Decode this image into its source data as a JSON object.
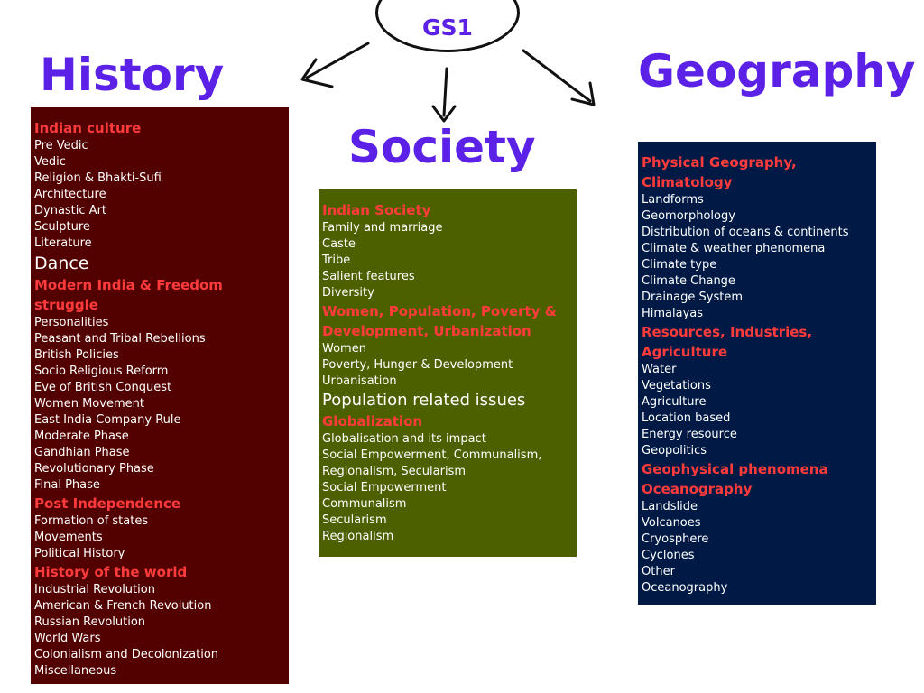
{
  "hub": {
    "label": "GS1"
  },
  "history": {
    "title": "History",
    "groups": [
      {
        "heading": "Indian culture",
        "items": [
          "Pre Vedic",
          "Vedic",
          "Religion & Bhakti-Sufi",
          "Architecture",
          "Dynastic Art",
          "Sculpture",
          "Literature"
        ]
      },
      {
        "heading": "",
        "items": [
          "Dance"
        ]
      },
      {
        "heading": "Modern India & Freedom struggle",
        "items": [
          "Personalities",
          "Peasant and Tribal Rebellions",
          "British Policies",
          "Socio Religious Reform",
          "Eve of British Conquest",
          "Women Movement",
          "East India Company Rule",
          "Moderate Phase",
          "Gandhian Phase",
          "Revolutionary Phase",
          "Final Phase"
        ]
      },
      {
        "heading": "Post Independence",
        "items": [
          "Formation of states",
          "Movements",
          "Political History"
        ]
      },
      {
        "heading": "History of the world",
        "items": [
          "Industrial Revolution",
          "American & French Revolution",
          "Russian Revolution",
          "World Wars",
          "Colonialism and Decolonization",
          "Miscellaneous"
        ]
      }
    ]
  },
  "society": {
    "title": "Society",
    "groups": [
      {
        "heading": "Indian Society",
        "items": [
          "Family and marriage",
          "Caste",
          "Tribe",
          "Salient features",
          "Diversity"
        ]
      },
      {
        "heading": "Women, Population, Poverty & Development, Urbanization",
        "items": [
          "Women",
          "Poverty, Hunger & Development",
          "Urbanisation"
        ]
      },
      {
        "heading": "",
        "items": [
          "Population related issues"
        ]
      },
      {
        "heading": "Globalization",
        "items": [
          "Globalisation and its impact",
          "Social Empowerment, Communalism,",
          "Regionalism, Secularism",
          "Social Empowerment",
          "Communalism",
          "Secularism",
          "Regionalism"
        ]
      }
    ]
  },
  "geography": {
    "title": "Geography",
    "groups": [
      {
        "heading": "Physical Geography, Climatology",
        "items": [
          "Landforms",
          "Geomorphology",
          "Distribution of oceans & continents",
          "Climate & weather phenomena",
          "Climate type",
          "Climate Change",
          "Drainage System",
          "Himalayas"
        ]
      },
      {
        "heading": "Resources, Industries, Agriculture",
        "items": [
          "Water",
          "Vegetations",
          "Agriculture",
          "Location based",
          "Energy resource",
          "Geopolitics"
        ]
      },
      {
        "heading": "Geophysical phenomena",
        "items": []
      },
      {
        "heading": "Oceanography",
        "items": [
          "Landslide",
          "Volcanoes",
          "Cryosphere",
          "Cyclones",
          "Other",
          "Oceanography"
        ]
      }
    ]
  }
}
